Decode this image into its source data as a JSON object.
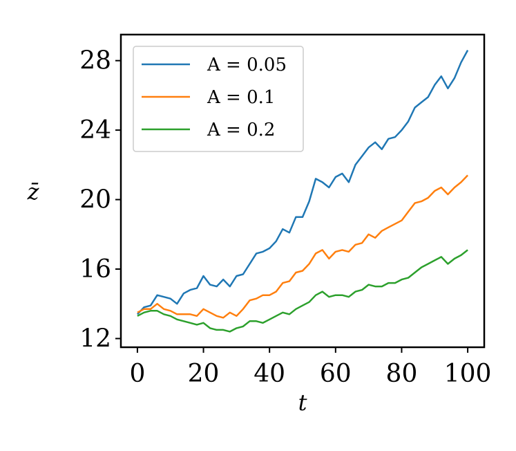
{
  "chart_data": {
    "type": "line",
    "xlabel": "t",
    "ylabel": "z̄",
    "xlim": [
      -5,
      105
    ],
    "ylim": [
      11.5,
      29.5
    ],
    "xticks": [
      0,
      20,
      40,
      60,
      80,
      100
    ],
    "yticks": [
      12,
      16,
      20,
      24,
      28
    ],
    "legend_position": "top-left",
    "grid": false,
    "series": [
      {
        "name": "A = 0.05",
        "color": "#1f77b4",
        "x": [
          0,
          2,
          4,
          6,
          8,
          10,
          12,
          14,
          16,
          18,
          20,
          22,
          24,
          26,
          28,
          30,
          32,
          34,
          36,
          38,
          40,
          42,
          44,
          46,
          48,
          50,
          52,
          54,
          56,
          58,
          60,
          62,
          64,
          66,
          68,
          70,
          72,
          74,
          76,
          78,
          80,
          82,
          84,
          86,
          88,
          90,
          92,
          94,
          96,
          98,
          100
        ],
        "y": [
          13.4,
          13.8,
          13.9,
          14.5,
          14.4,
          14.3,
          14.0,
          14.6,
          14.8,
          14.9,
          15.6,
          15.1,
          15.0,
          15.4,
          15.0,
          15.6,
          15.7,
          16.3,
          16.9,
          17.0,
          17.2,
          17.6,
          18.3,
          18.1,
          19.0,
          19.0,
          19.9,
          21.2,
          21.0,
          20.7,
          21.3,
          21.5,
          21.0,
          22.0,
          22.5,
          23.0,
          23.3,
          22.9,
          23.5,
          23.6,
          24.0,
          24.5,
          25.3,
          25.6,
          25.9,
          26.6,
          27.1,
          26.4,
          27.0,
          27.9,
          28.6
        ]
      },
      {
        "name": "A = 0.1",
        "color": "#ff7f0e",
        "x": [
          0,
          2,
          4,
          6,
          8,
          10,
          12,
          14,
          16,
          18,
          20,
          22,
          24,
          26,
          28,
          30,
          32,
          34,
          36,
          38,
          40,
          42,
          44,
          46,
          48,
          50,
          52,
          54,
          56,
          58,
          60,
          62,
          64,
          66,
          68,
          70,
          72,
          74,
          76,
          78,
          80,
          82,
          84,
          86,
          88,
          90,
          92,
          94,
          96,
          98,
          100
        ],
        "y": [
          13.5,
          13.7,
          13.7,
          14.0,
          13.7,
          13.6,
          13.4,
          13.4,
          13.4,
          13.3,
          13.7,
          13.5,
          13.3,
          13.2,
          13.5,
          13.3,
          13.7,
          14.2,
          14.3,
          14.5,
          14.5,
          14.7,
          15.2,
          15.3,
          15.8,
          15.9,
          16.3,
          16.9,
          17.1,
          16.6,
          17.0,
          17.1,
          17.0,
          17.4,
          17.5,
          18.0,
          17.8,
          18.2,
          18.4,
          18.6,
          18.8,
          19.3,
          19.8,
          19.9,
          20.1,
          20.5,
          20.7,
          20.3,
          20.7,
          21.0,
          21.4
        ]
      },
      {
        "name": "A = 0.2",
        "color": "#2ca02c",
        "x": [
          0,
          2,
          4,
          6,
          8,
          10,
          12,
          14,
          16,
          18,
          20,
          22,
          24,
          26,
          28,
          30,
          32,
          34,
          36,
          38,
          40,
          42,
          44,
          46,
          48,
          50,
          52,
          54,
          56,
          58,
          60,
          62,
          64,
          66,
          68,
          70,
          72,
          74,
          76,
          78,
          80,
          82,
          84,
          86,
          88,
          90,
          92,
          94,
          96,
          98,
          100
        ],
        "y": [
          13.3,
          13.5,
          13.6,
          13.6,
          13.4,
          13.3,
          13.1,
          13.0,
          12.9,
          12.8,
          12.9,
          12.6,
          12.5,
          12.5,
          12.4,
          12.6,
          12.7,
          13.0,
          13.0,
          12.9,
          13.1,
          13.3,
          13.5,
          13.4,
          13.7,
          13.9,
          14.1,
          14.5,
          14.7,
          14.4,
          14.5,
          14.5,
          14.4,
          14.7,
          14.8,
          15.1,
          15.0,
          15.0,
          15.2,
          15.2,
          15.4,
          15.5,
          15.8,
          16.1,
          16.3,
          16.5,
          16.7,
          16.3,
          16.6,
          16.8,
          17.1
        ]
      }
    ]
  }
}
